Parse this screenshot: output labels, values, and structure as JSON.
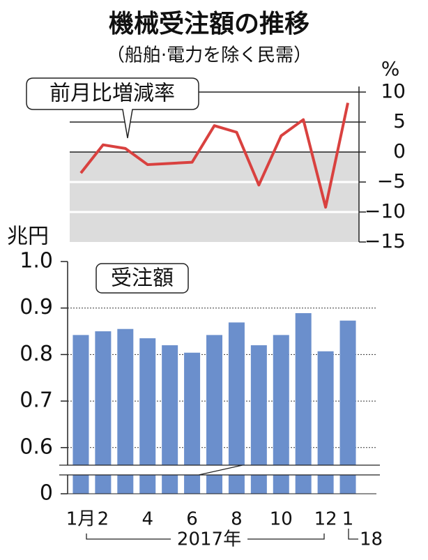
{
  "chart_data": [
    {
      "type": "line",
      "title": "機械受注額の推移",
      "subtitle": "（船舶·電力を除く民需）",
      "label": "前月比増減率",
      "unit": "%",
      "color": "#d9413f",
      "values": [
        -3.5,
        1.2,
        0.6,
        -2.1,
        -1.9,
        -1.7,
        4.4,
        3.3,
        -5.5,
        2.7,
        5.4,
        -9.2,
        8.2
      ],
      "ylim": [
        -15,
        10
      ],
      "yticks": [
        {
          "value": -15,
          "label": "−15"
        },
        {
          "value": -10,
          "label": "−10"
        },
        {
          "value": -5,
          "label": "−5"
        },
        0,
        5,
        10
      ]
    },
    {
      "type": "bar",
      "label": "受注額",
      "unit": "兆円",
      "color": "#6b8fcc",
      "categories": [
        "1月",
        "2",
        null,
        "4",
        null,
        "6",
        null,
        "8",
        null,
        "10",
        null,
        "12",
        "1"
      ],
      "values": [
        0.842,
        0.85,
        0.855,
        0.835,
        0.82,
        0.804,
        0.842,
        0.869,
        0.82,
        0.842,
        0.889,
        0.807,
        0.873
      ],
      "ylim": [
        0,
        1.0
      ],
      "yticks": [
        0,
        0.6,
        0.7,
        0.8,
        0.9,
        {
          "value": 1.0,
          "label": "1.0"
        }
      ],
      "year_labels": [
        "2017年",
        "18"
      ]
    }
  ]
}
